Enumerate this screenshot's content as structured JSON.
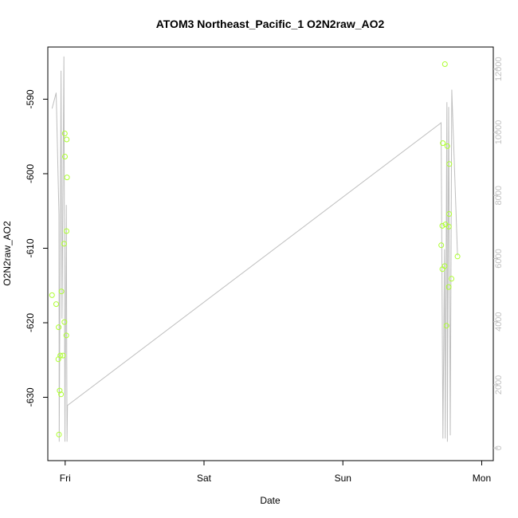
{
  "chart_data": {
    "type": "scatter",
    "title": "ATOM3 Northeast_Pacific_1 O2N2raw_AO2",
    "xlabel": "Date",
    "ylabel": "O2N2raw_AO2",
    "x_ticks": [
      "Fri",
      "Sat",
      "Sun",
      "Mon"
    ],
    "y_left_ticks": [
      "-630",
      "-620",
      "-610",
      "-600",
      "-590"
    ],
    "y_right_ticks": [
      "0",
      "2000",
      "4000",
      "6000",
      "8000",
      "10000",
      "12000"
    ],
    "xlim": [
      "2016-10-06T21:00",
      "2016-10-10T02:00"
    ],
    "ylim": [
      -638.5,
      -583
    ],
    "y2lim": [
      -400,
      12700
    ],
    "colors": {
      "points": "#adff2f",
      "line": "#bebebe",
      "axis": "#000000",
      "right_axis": "#c0c0c0"
    },
    "series": [
      {
        "type": "scatter",
        "axis": "left",
        "points": [
          {
            "x": "2016-10-06T21:44",
            "y": -616.3
          },
          {
            "x": "2016-10-06T22:27",
            "y": -617.5
          },
          {
            "x": "2016-10-06T22:49",
            "y": -624.9
          },
          {
            "x": "2016-10-06T22:52",
            "y": -620.6
          },
          {
            "x": "2016-10-06T22:56",
            "y": -635.0
          },
          {
            "x": "2016-10-06T23:03",
            "y": -629.1
          },
          {
            "x": "2016-10-06T23:10",
            "y": -624.4
          },
          {
            "x": "2016-10-06T23:17",
            "y": -629.6
          },
          {
            "x": "2016-10-06T23:21",
            "y": -615.8
          },
          {
            "x": "2016-10-06T23:38",
            "y": -624.4
          },
          {
            "x": "2016-10-06T23:49",
            "y": -609.4
          },
          {
            "x": "2016-10-06T23:52",
            "y": -619.9
          },
          {
            "x": "2016-10-06T23:56",
            "y": -594.6
          },
          {
            "x": "2016-10-06T23:58",
            "y": -597.7
          },
          {
            "x": "2016-10-07T00:12",
            "y": -621.7
          },
          {
            "x": "2016-10-07T00:14",
            "y": -607.7
          },
          {
            "x": "2016-10-07T00:16",
            "y": -595.4
          },
          {
            "x": "2016-10-07T00:19",
            "y": -600.5
          },
          {
            "x": "2016-10-09T17:00",
            "y": -609.6
          },
          {
            "x": "2016-10-09T17:11",
            "y": -607.0
          },
          {
            "x": "2016-10-09T17:12",
            "y": -612.8
          },
          {
            "x": "2016-10-09T17:17",
            "y": -595.9
          },
          {
            "x": "2016-10-09T17:36",
            "y": -612.4
          },
          {
            "x": "2016-10-09T17:38",
            "y": -585.3
          },
          {
            "x": "2016-10-09T17:44",
            "y": -606.8
          },
          {
            "x": "2016-10-09T17:54",
            "y": -620.4
          },
          {
            "x": "2016-10-09T18:03",
            "y": -596.3
          },
          {
            "x": "2016-10-09T18:17",
            "y": -615.2
          },
          {
            "x": "2016-10-09T18:19",
            "y": -607.1
          },
          {
            "x": "2016-10-09T18:22",
            "y": -605.4
          },
          {
            "x": "2016-10-09T18:24",
            "y": -598.7
          },
          {
            "x": "2016-10-09T18:47",
            "y": -614.1
          },
          {
            "x": "2016-10-09T19:49",
            "y": -611.1
          }
        ]
      },
      {
        "type": "line",
        "axis": "right",
        "points": [
          {
            "x": "2016-10-06T21:44",
            "y": 10750
          },
          {
            "x": "2016-10-06T22:27",
            "y": 11250
          },
          {
            "x": "2016-10-06T22:56",
            "y": 7400
          },
          {
            "x": "2016-10-06T22:58",
            "y": 200
          },
          {
            "x": "2016-10-06T23:17",
            "y": 11950
          },
          {
            "x": "2016-10-06T23:27",
            "y": 4100
          },
          {
            "x": "2016-10-06T23:47",
            "y": 12400
          },
          {
            "x": "2016-10-06T23:58",
            "y": 200
          },
          {
            "x": "2016-10-07T00:12",
            "y": 7700
          },
          {
            "x": "2016-10-07T00:19",
            "y": 200
          },
          {
            "x": "2016-10-07T00:24",
            "y": 1350
          },
          {
            "x": "2016-10-09T16:59",
            "y": 10300
          },
          {
            "x": "2016-10-09T17:18",
            "y": 300
          },
          {
            "x": "2016-10-09T17:34",
            "y": 6300
          },
          {
            "x": "2016-10-09T17:42",
            "y": 300
          },
          {
            "x": "2016-10-09T17:59",
            "y": 10950
          },
          {
            "x": "2016-10-09T18:04",
            "y": 200
          },
          {
            "x": "2016-10-09T18:17",
            "y": 10800
          },
          {
            "x": "2016-10-09T18:34",
            "y": 400
          },
          {
            "x": "2016-10-09T18:49",
            "y": 11350
          },
          {
            "x": "2016-10-09T19:49",
            "y": 6100
          }
        ]
      }
    ]
  }
}
